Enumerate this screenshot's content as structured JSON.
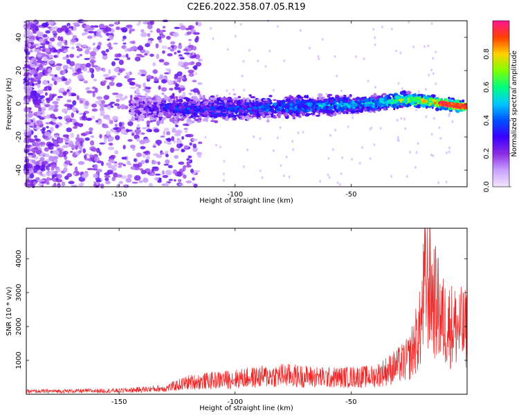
{
  "title": "C2E6.2022.358.07.05.R19",
  "chart_data": [
    {
      "type": "heatmap",
      "name": "spectrogram",
      "xlabel": "Height of straight line (km)",
      "ylabel": "Frequency (Hz)",
      "xlim": [
        -190,
        0
      ],
      "ylim": [
        -50,
        50
      ],
      "xticks": [
        -150,
        -100,
        -50
      ],
      "yticks": [
        -40,
        -20,
        0,
        20,
        40
      ],
      "colorbar": {
        "label": "Normalized spectral amplitude",
        "range": [
          0,
          1
        ],
        "ticks": [
          0.0,
          0.2,
          0.4,
          0.6,
          0.8
        ],
        "colormap": [
          "#f3e6ff",
          "#c8a0ff",
          "#8a2be2",
          "#3a00ff",
          "#0050ff",
          "#00c8ff",
          "#00ff80",
          "#80ff00",
          "#ffd000",
          "#ff4000",
          "#ff1493"
        ]
      },
      "ridge": [
        {
          "x": -190,
          "freq": 0,
          "amp": 0.1
        },
        {
          "x": -140,
          "freq": -2,
          "amp": 0.2
        },
        {
          "x": -125,
          "freq": -3,
          "amp": 0.3
        },
        {
          "x": -100,
          "freq": -3,
          "amp": 0.35
        },
        {
          "x": -80,
          "freq": -2,
          "amp": 0.4
        },
        {
          "x": -60,
          "freq": -1,
          "amp": 0.45
        },
        {
          "x": -40,
          "freq": 0,
          "amp": 0.5
        },
        {
          "x": -30,
          "freq": 2,
          "amp": 0.65
        },
        {
          "x": -20,
          "freq": 2,
          "amp": 0.75
        },
        {
          "x": -10,
          "freq": 0,
          "amp": 0.85
        },
        {
          "x": 0,
          "freq": -2,
          "amp": 0.95
        }
      ]
    },
    {
      "type": "line",
      "name": "snr",
      "xlabel": "Height of straight line (km)",
      "ylabel": "SNR (10 * v/v)",
      "xlim": [
        -190,
        0
      ],
      "ylim": [
        0,
        4900
      ],
      "xticks": [
        -150,
        -100,
        -50
      ],
      "yticks": [
        1000,
        2000,
        3000,
        4000
      ],
      "color": "#ee2222",
      "envelope": [
        {
          "x": -190,
          "y": 120
        },
        {
          "x": -150,
          "y": 150
        },
        {
          "x": -130,
          "y": 250
        },
        {
          "x": -120,
          "y": 500
        },
        {
          "x": -100,
          "y": 650
        },
        {
          "x": -80,
          "y": 800
        },
        {
          "x": -60,
          "y": 700
        },
        {
          "x": -40,
          "y": 750
        },
        {
          "x": -30,
          "y": 1200
        },
        {
          "x": -25,
          "y": 1500
        },
        {
          "x": -20,
          "y": 2800
        },
        {
          "x": -18,
          "y": 4900
        },
        {
          "x": -10,
          "y": 3000
        },
        {
          "x": 0,
          "y": 2700
        }
      ]
    }
  ]
}
